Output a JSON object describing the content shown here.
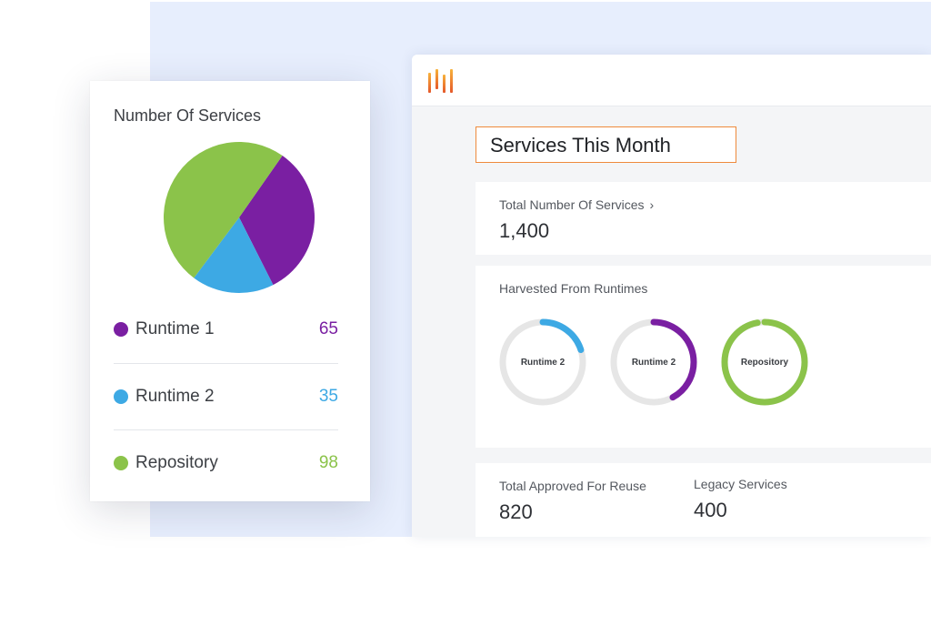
{
  "colors": {
    "runtime1": "#7a1fa2",
    "runtime2": "#3da9e4",
    "repository": "#8bc34a",
    "ring_track": "#e6e6e6",
    "title_border": "#ee8a3c",
    "logo_orange": "#f08a24"
  },
  "app": {
    "logo_icon": "bars-logo-icon",
    "page_title": "Services This Month",
    "total_services": {
      "label": "Total Number Of Services",
      "value": "1,400",
      "chevron": "›"
    },
    "harvested": {
      "label": "Harvested From Runtimes",
      "rings": [
        {
          "label": "Runtime 2",
          "fraction": 0.2,
          "color": "#3da9e4"
        },
        {
          "label": "Runtime 2",
          "fraction": 0.42,
          "color": "#7a1fa2"
        },
        {
          "label": "Repository",
          "fraction": 0.97,
          "color": "#8bc34a"
        }
      ]
    },
    "approved": {
      "label": "Total Approved For Reuse",
      "value": "820"
    },
    "legacy": {
      "label": "Legacy Services",
      "value": "400"
    }
  },
  "services_card": {
    "title": "Number Of Services",
    "legend": [
      {
        "name": "Runtime 1",
        "value": "65",
        "color": "#7a1fa2"
      },
      {
        "name": "Runtime 2",
        "value": "35",
        "color": "#3da9e4"
      },
      {
        "name": "Repository",
        "value": "98",
        "color": "#8bc34a"
      }
    ]
  },
  "chart_data": {
    "type": "pie",
    "title": "Number Of Services",
    "categories": [
      "Runtime 1",
      "Runtime 2",
      "Repository"
    ],
    "values": [
      65,
      35,
      98
    ],
    "colors": [
      "#7a1fa2",
      "#3da9e4",
      "#8bc34a"
    ]
  }
}
